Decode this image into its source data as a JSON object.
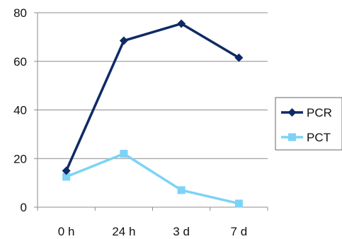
{
  "chart_data": {
    "type": "line",
    "categories": [
      "0 h",
      "24 h",
      "3 d",
      "7 d"
    ],
    "series": [
      {
        "name": "PCR",
        "values": [
          15,
          68.5,
          75.5,
          61.5
        ],
        "color": "#0f2a66",
        "marker": "diamond"
      },
      {
        "name": "PCT",
        "values": [
          12.5,
          22,
          7,
          1.5
        ],
        "color": "#7dd3f5",
        "marker": "square"
      }
    ],
    "ylim": [
      0,
      80
    ],
    "yticks": [
      0,
      20,
      40,
      60,
      80
    ],
    "grid": true,
    "legend": "right",
    "title": "",
    "xlabel": "",
    "ylabel": ""
  }
}
